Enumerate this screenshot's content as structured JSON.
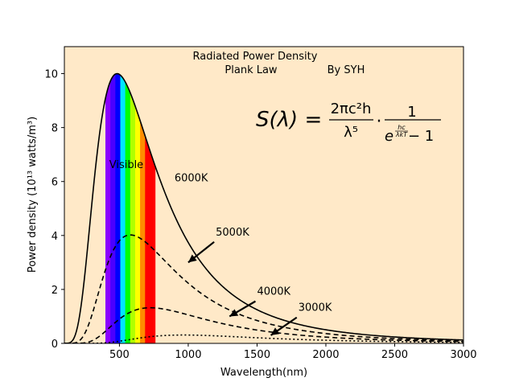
{
  "chart_data": {
    "type": "line",
    "title": "Radiated Power Density",
    "subtitle": "Plank Law",
    "author": "By SYH",
    "xlabel": "Wavelength(nm)",
    "ylabel": "Power density (10¹³ watts/m³)",
    "xlim": [
      100,
      3000
    ],
    "ylim": [
      0,
      11
    ],
    "xticks": [
      500,
      1000,
      1500,
      2000,
      2500,
      3000
    ],
    "yticks": [
      0,
      2,
      4,
      6,
      8,
      10
    ],
    "background": "#ffe9c8",
    "series": [
      {
        "name": "6000K",
        "temperature": 6000,
        "style": "solid",
        "peak_wavelength_nm": 483,
        "peak_value": 10.0
      },
      {
        "name": "5000K",
        "temperature": 5000,
        "style": "dashed",
        "peak_wavelength_nm": 580,
        "peak_value": 4.02
      },
      {
        "name": "4000K",
        "temperature": 4000,
        "style": "dashed",
        "peak_wavelength_nm": 724,
        "peak_value": 1.32
      },
      {
        "name": "3000K",
        "temperature": 3000,
        "style": "dotted",
        "peak_wavelength_nm": 966,
        "peak_value": 0.31
      }
    ],
    "visible_band": {
      "label": "Visible",
      "range_nm": [
        400,
        760
      ],
      "colors": [
        "#8b00ff",
        "#4b00ff",
        "#0000ff",
        "#00e5ff",
        "#00ff00",
        "#b0ff00",
        "#ffff00",
        "#ff8c00",
        "#ff0000",
        "#ff0000"
      ]
    },
    "annotations": [
      {
        "text": "6000K",
        "x": 900,
        "y": 6.0
      },
      {
        "text": "5000K",
        "x": 1200,
        "y": 4.0,
        "arrow_to": [
          1000,
          3.0
        ]
      },
      {
        "text": "4000K",
        "x": 1500,
        "y": 1.8,
        "arrow_to": [
          1300,
          1.0
        ]
      },
      {
        "text": "3000K",
        "x": 1800,
        "y": 1.2,
        "arrow_to": [
          1600,
          0.3
        ]
      }
    ],
    "formula": {
      "lhs": "S(λ) =",
      "num1": "2πc²h",
      "den1": "λ⁵",
      "dot": "·",
      "num2": "1",
      "den2_exp": "hc",
      "den2_exp_den": "λkT",
      "den2_base": "e",
      "den2_tail": " − 1"
    }
  }
}
